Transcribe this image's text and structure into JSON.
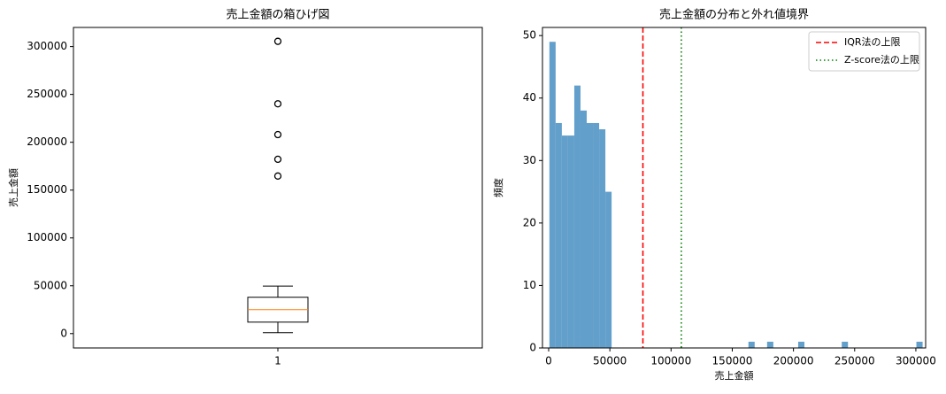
{
  "chart_data": [
    {
      "type": "box",
      "title": "売上金額の箱ひげ図",
      "ylabel": "売上金額",
      "categories": [
        "1"
      ],
      "series": [
        {
          "whisker_low": 1000,
          "q1": 12000,
          "median": 25000,
          "q3": 38000,
          "whisker_high": 49700,
          "outliers": [
            305500,
            240200,
            208000,
            182200,
            164700
          ],
          "color": "#000000",
          "median_color": "#ff7f0e"
        }
      ],
      "ylim": [
        -15000,
        320000
      ],
      "yticks": [
        0,
        50000,
        100000,
        150000,
        200000,
        250000,
        300000
      ]
    },
    {
      "type": "histogram",
      "title": "売上金額の分布と外れ値境界",
      "xlabel": "売上金額",
      "ylabel": "頻度",
      "bins": [
        600,
        5682,
        10764,
        15846,
        20928,
        26010,
        31092,
        36174,
        41256,
        46338,
        51420,
        56502,
        61584,
        66666,
        71748,
        76830,
        81912,
        86994,
        92076,
        97158,
        102240,
        107322,
        112404,
        117486,
        122568,
        127650,
        132732,
        137814,
        142896,
        147978,
        153060,
        158142,
        163224,
        168306,
        173388,
        178470,
        183552,
        188634,
        193716,
        198798,
        203880,
        208962,
        214044,
        219126,
        224208,
        229290,
        234372,
        239454,
        244536,
        249618,
        254700,
        259782,
        264864,
        269946,
        275028,
        280110,
        285192,
        290274,
        295356,
        300438,
        305520
      ],
      "values": [
        49,
        36,
        34,
        34,
        42,
        38,
        36,
        36,
        35,
        25,
        0,
        0,
        0,
        0,
        0,
        0,
        0,
        0,
        0,
        0,
        0,
        0,
        0,
        0,
        0,
        0,
        0,
        0,
        0,
        0,
        0,
        0,
        1,
        0,
        0,
        1,
        0,
        0,
        0,
        0,
        1,
        0,
        0,
        0,
        0,
        0,
        0,
        1,
        0,
        0,
        0,
        0,
        0,
        0,
        0,
        0,
        0,
        0,
        0,
        1
      ],
      "color": "#639fcb",
      "vlines": [
        {
          "name": "IQR法の上限",
          "value": 77000,
          "color": "#ff0000",
          "style": "dashed"
        },
        {
          "name": "Z-score法の上限",
          "value": 108400,
          "color": "#008000",
          "style": "dotted"
        }
      ],
      "legend": "upper right",
      "xlim": [
        -5060,
        308000
      ],
      "xticks": [
        0,
        50000,
        100000,
        150000,
        200000,
        250000,
        300000
      ],
      "ylim": [
        0,
        51.3
      ],
      "yticks": [
        0,
        10,
        20,
        30,
        40,
        50
      ]
    }
  ]
}
